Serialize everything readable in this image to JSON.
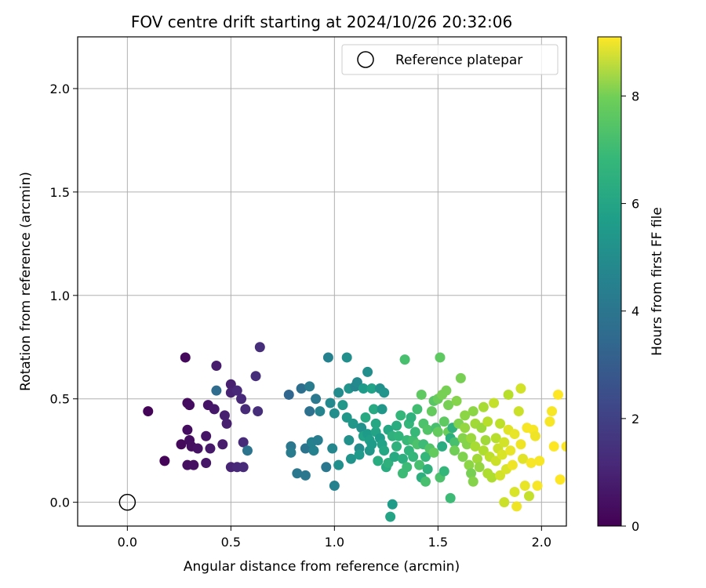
{
  "chart_data": {
    "type": "scatter",
    "title": "FOV centre drift starting at 2024/10/26 20:32:06",
    "xlabel": "Angular distance from reference (arcmin)",
    "ylabel": "Rotation from reference (arcmin)",
    "xlim": [
      -0.24,
      2.12
    ],
    "ylim": [
      -0.115,
      2.25
    ],
    "xticks": [
      0.0,
      0.5,
      1.0,
      1.5,
      2.0
    ],
    "yticks": [
      0.0,
      0.5,
      1.0,
      1.5,
      2.0
    ],
    "xtick_labels": [
      "0.0",
      "0.5",
      "1.0",
      "1.5",
      "2.0"
    ],
    "ytick_labels": [
      "0.0",
      "0.5",
      "1.0",
      "1.5",
      "2.0"
    ],
    "grid": true,
    "legend": {
      "placement": "top-right",
      "entries": [
        "Reference platepar"
      ]
    },
    "reference_point": {
      "x": 0.0,
      "y": 0.0
    },
    "colorbar": {
      "label": "Hours from first FF file",
      "colormap": "viridis",
      "range": [
        0,
        9.1
      ],
      "ticks": [
        0,
        2,
        4,
        6,
        8
      ],
      "tick_labels": [
        "0",
        "2",
        "4",
        "6",
        "8"
      ]
    },
    "points": [
      [
        0.1,
        0.44,
        0.1
      ],
      [
        0.18,
        0.2,
        0.1
      ],
      [
        0.28,
        0.7,
        0.2
      ],
      [
        0.26,
        0.28,
        0.2
      ],
      [
        0.29,
        0.48,
        0.25
      ],
      [
        0.3,
        0.47,
        0.3
      ],
      [
        0.29,
        0.35,
        0.3
      ],
      [
        0.3,
        0.3,
        0.3
      ],
      [
        0.29,
        0.18,
        0.35
      ],
      [
        0.31,
        0.27,
        0.35
      ],
      [
        0.32,
        0.18,
        0.4
      ],
      [
        0.34,
        0.26,
        0.45
      ],
      [
        0.38,
        0.32,
        0.5
      ],
      [
        0.39,
        0.47,
        0.5
      ],
      [
        0.38,
        0.19,
        0.55
      ],
      [
        0.4,
        0.26,
        0.6
      ],
      [
        0.42,
        0.45,
        0.6
      ],
      [
        0.43,
        0.66,
        0.7
      ],
      [
        0.46,
        0.28,
        0.7
      ],
      [
        0.47,
        0.42,
        0.8
      ],
      [
        0.48,
        0.38,
        0.8
      ],
      [
        0.5,
        0.57,
        0.8
      ],
      [
        0.5,
        0.53,
        0.9
      ],
      [
        0.5,
        0.17,
        0.9
      ],
      [
        0.53,
        0.54,
        1.0
      ],
      [
        0.53,
        0.17,
        1.0
      ],
      [
        0.55,
        0.5,
        1.0
      ],
      [
        0.56,
        0.17,
        1.1
      ],
      [
        0.56,
        0.29,
        1.1
      ],
      [
        0.57,
        0.45,
        1.1
      ],
      [
        0.62,
        0.61,
        1.2
      ],
      [
        0.63,
        0.44,
        1.2
      ],
      [
        0.64,
        0.75,
        1.2
      ],
      [
        0.43,
        0.54,
        3.2
      ],
      [
        0.58,
        0.25,
        3.5
      ],
      [
        0.78,
        0.52,
        3.0
      ],
      [
        0.79,
        0.27,
        3.6
      ],
      [
        0.79,
        0.24,
        3.8
      ],
      [
        0.82,
        0.14,
        3.6
      ],
      [
        0.84,
        0.55,
        3.3
      ],
      [
        0.86,
        0.26,
        3.5
      ],
      [
        0.86,
        0.13,
        3.6
      ],
      [
        0.88,
        0.44,
        3.4
      ],
      [
        0.88,
        0.56,
        3.8
      ],
      [
        0.89,
        0.29,
        4.0
      ],
      [
        0.9,
        0.25,
        4.0
      ],
      [
        0.91,
        0.5,
        3.7
      ],
      [
        0.92,
        0.3,
        3.9
      ],
      [
        0.93,
        0.44,
        4.1
      ],
      [
        0.96,
        0.17,
        3.6
      ],
      [
        0.97,
        0.7,
        4.0
      ],
      [
        0.98,
        0.48,
        4.3
      ],
      [
        0.99,
        0.26,
        4.2
      ],
      [
        1.0,
        0.43,
        4.5
      ],
      [
        1.0,
        0.08,
        4.0
      ],
      [
        1.02,
        0.18,
        4.5
      ],
      [
        1.02,
        0.53,
        4.4
      ],
      [
        1.04,
        0.47,
        4.8
      ],
      [
        1.06,
        0.7,
        4.5
      ],
      [
        1.06,
        0.41,
        4.8
      ],
      [
        1.07,
        0.55,
        4.7
      ],
      [
        1.07,
        0.3,
        4.6
      ],
      [
        1.08,
        0.21,
        4.7
      ],
      [
        1.09,
        0.38,
        4.8
      ],
      [
        1.1,
        0.56,
        4.2
      ],
      [
        1.11,
        0.58,
        4.3
      ],
      [
        1.12,
        0.26,
        4.4
      ],
      [
        1.12,
        0.23,
        4.9
      ],
      [
        1.13,
        0.36,
        4.6
      ],
      [
        1.14,
        0.32,
        5.2
      ],
      [
        1.14,
        0.55,
        5.0
      ],
      [
        1.15,
        0.41,
        5.5
      ],
      [
        1.16,
        0.63,
        4.5
      ],
      [
        1.16,
        0.33,
        5.0
      ],
      [
        1.17,
        0.3,
        5.1
      ],
      [
        1.17,
        0.25,
        4.8
      ],
      [
        1.18,
        0.28,
        5.0
      ],
      [
        1.18,
        0.55,
        5.2
      ],
      [
        1.19,
        0.45,
        5.5
      ],
      [
        1.2,
        0.34,
        5.3
      ],
      [
        1.2,
        0.38,
        5.4
      ],
      [
        1.21,
        0.2,
        5.6
      ],
      [
        1.22,
        0.31,
        5.0
      ],
      [
        1.22,
        0.55,
        4.6
      ],
      [
        1.23,
        0.45,
        4.8
      ],
      [
        1.23,
        0.28,
        5.2
      ],
      [
        1.24,
        0.25,
        5.4
      ],
      [
        1.24,
        0.53,
        4.7
      ],
      [
        1.25,
        0.17,
        5.6
      ],
      [
        1.26,
        0.19,
        5.8
      ],
      [
        1.26,
        0.35,
        5.4
      ],
      [
        1.27,
        -0.07,
        5.3
      ],
      [
        1.28,
        -0.01,
        5.0
      ],
      [
        1.28,
        0.32,
        5.8
      ],
      [
        1.29,
        0.22,
        5.5
      ],
      [
        1.3,
        0.37,
        5.6
      ],
      [
        1.3,
        0.27,
        5.8
      ],
      [
        1.31,
        0.32,
        5.9
      ],
      [
        1.32,
        0.42,
        6.0
      ],
      [
        1.33,
        0.14,
        6.2
      ],
      [
        1.33,
        0.21,
        5.7
      ],
      [
        1.34,
        0.69,
        6.4
      ],
      [
        1.35,
        0.3,
        6.1
      ],
      [
        1.35,
        0.17,
        6.2
      ],
      [
        1.36,
        0.25,
        5.9
      ],
      [
        1.36,
        0.38,
        6.0
      ],
      [
        1.37,
        0.41,
        5.8
      ],
      [
        1.38,
        0.3,
        6.3
      ],
      [
        1.38,
        0.22,
        6.0
      ],
      [
        1.39,
        0.34,
        6.1
      ],
      [
        1.4,
        0.28,
        6.5
      ],
      [
        1.4,
        0.45,
        6.3
      ],
      [
        1.41,
        0.18,
        6.4
      ],
      [
        1.42,
        0.52,
        6.8
      ],
      [
        1.42,
        0.12,
        5.7
      ],
      [
        1.43,
        0.38,
        6.5
      ],
      [
        1.43,
        0.28,
        6.2
      ],
      [
        1.44,
        0.22,
        6.0
      ],
      [
        1.44,
        0.1,
        6.4
      ],
      [
        1.45,
        0.35,
        6.6
      ],
      [
        1.45,
        0.16,
        5.8
      ],
      [
        1.46,
        0.26,
        6.6
      ],
      [
        1.47,
        0.44,
        6.9
      ],
      [
        1.48,
        0.49,
        6.7
      ],
      [
        1.48,
        0.24,
        6.9
      ],
      [
        1.49,
        0.36,
        6.4
      ],
      [
        1.5,
        0.5,
        7.0
      ],
      [
        1.5,
        0.34,
        6.9
      ],
      [
        1.51,
        0.12,
        6.5
      ],
      [
        1.51,
        0.7,
        6.8
      ],
      [
        1.52,
        0.52,
        7.2
      ],
      [
        1.52,
        0.27,
        5.6
      ],
      [
        1.53,
        0.39,
        6.8
      ],
      [
        1.53,
        0.15,
        6.0
      ],
      [
        1.54,
        0.54,
        7.2
      ],
      [
        1.55,
        0.34,
        7.0
      ],
      [
        1.55,
        0.47,
        7.2
      ],
      [
        1.56,
        0.31,
        5.7
      ],
      [
        1.56,
        0.02,
        6.2
      ],
      [
        1.57,
        0.36,
        5.8
      ],
      [
        1.58,
        0.29,
        6.4
      ],
      [
        1.58,
        0.25,
        7.1
      ],
      [
        1.59,
        0.49,
        7.4
      ],
      [
        1.6,
        0.38,
        7.3
      ],
      [
        1.61,
        0.6,
        7.2
      ],
      [
        1.62,
        0.31,
        7.4
      ],
      [
        1.62,
        0.22,
        7.3
      ],
      [
        1.63,
        0.42,
        7.5
      ],
      [
        1.63,
        0.36,
        7.6
      ],
      [
        1.64,
        0.28,
        7.4
      ],
      [
        1.65,
        0.18,
        7.5
      ],
      [
        1.66,
        0.14,
        7.2
      ],
      [
        1.66,
        0.31,
        7.7
      ],
      [
        1.67,
        0.44,
        7.5
      ],
      [
        1.67,
        0.1,
        7.4
      ],
      [
        1.68,
        0.38,
        7.8
      ],
      [
        1.68,
        0.27,
        7.9
      ],
      [
        1.69,
        0.21,
        7.8
      ],
      [
        1.7,
        0.17,
        7.6
      ],
      [
        1.71,
        0.36,
        7.7
      ],
      [
        1.72,
        0.25,
        8.0
      ],
      [
        1.72,
        0.46,
        7.9
      ],
      [
        1.73,
        0.3,
        7.8
      ],
      [
        1.74,
        0.14,
        8.0
      ],
      [
        1.74,
        0.39,
        8.1
      ],
      [
        1.75,
        0.22,
        8.2
      ],
      [
        1.76,
        0.12,
        8.0
      ],
      [
        1.77,
        0.48,
        8.3
      ],
      [
        1.78,
        0.31,
        8.1
      ],
      [
        1.78,
        0.2,
        8.4
      ],
      [
        1.79,
        0.26,
        8.4
      ],
      [
        1.8,
        0.13,
        8.5
      ],
      [
        1.8,
        0.38,
        8.2
      ],
      [
        1.81,
        0.23,
        8.6
      ],
      [
        1.82,
        0.0,
        8.4
      ],
      [
        1.82,
        0.29,
        8.5
      ],
      [
        1.83,
        0.16,
        8.6
      ],
      [
        1.84,
        0.52,
        8.1
      ],
      [
        1.84,
        0.35,
        8.7
      ],
      [
        1.85,
        0.25,
        8.8
      ],
      [
        1.86,
        0.18,
        8.9
      ],
      [
        1.87,
        0.05,
        8.6
      ],
      [
        1.87,
        0.33,
        8.8
      ],
      [
        1.88,
        -0.02,
        8.9
      ],
      [
        1.89,
        0.44,
        8.4
      ],
      [
        1.9,
        0.55,
        8.5
      ],
      [
        1.9,
        0.28,
        8.9
      ],
      [
        1.91,
        0.21,
        8.7
      ],
      [
        1.92,
        0.08,
        8.8
      ],
      [
        1.93,
        0.36,
        9.0
      ],
      [
        1.94,
        0.03,
        8.3
      ],
      [
        1.95,
        0.19,
        9.0
      ],
      [
        1.96,
        0.35,
        9.0
      ],
      [
        1.97,
        0.32,
        8.9
      ],
      [
        1.98,
        0.08,
        9.0
      ],
      [
        1.99,
        0.2,
        9.0
      ],
      [
        2.04,
        0.39,
        9.0
      ],
      [
        2.05,
        0.44,
        9.0
      ],
      [
        2.06,
        0.27,
        9.1
      ],
      [
        2.08,
        0.52,
        9.1
      ],
      [
        2.09,
        0.11,
        9.1
      ],
      [
        2.12,
        0.27,
        9.1
      ]
    ]
  }
}
